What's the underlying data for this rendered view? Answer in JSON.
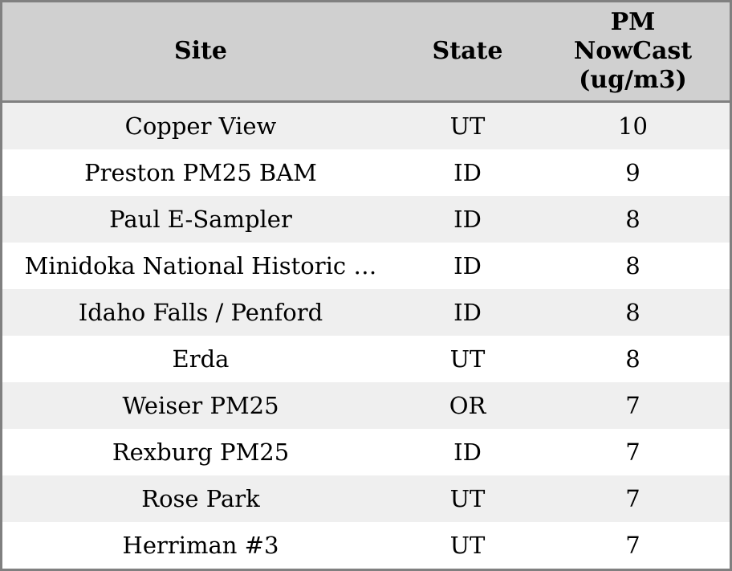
{
  "chart_data": {
    "type": "table",
    "columns": [
      "Site",
      "State",
      "PM NowCast (ug/m3)"
    ],
    "rows": [
      [
        "Copper View",
        "UT",
        10
      ],
      [
        "Preston PM25 BAM",
        "ID",
        9
      ],
      [
        "Paul E-Sampler",
        "ID",
        8
      ],
      [
        "Minidoka National Historic …",
        "ID",
        8
      ],
      [
        "Idaho Falls / Penford",
        "ID",
        8
      ],
      [
        "Erda",
        "UT",
        8
      ],
      [
        "Weiser PM25",
        "OR",
        7
      ],
      [
        "Rexburg PM25",
        "ID",
        7
      ],
      [
        "Rose Park",
        "UT",
        7
      ],
      [
        "Herriman #3",
        "UT",
        7
      ]
    ]
  },
  "table": {
    "header": {
      "site": "Site",
      "state": "State",
      "pm_lines": [
        "PM",
        "NowCast",
        "(ug/m3)"
      ]
    }
  },
  "colors": {
    "header_bg": "#d0d0d0",
    "row_odd_bg": "#efefef",
    "row_even_bg": "#ffffff",
    "border": "#808080",
    "text": "#000000"
  }
}
